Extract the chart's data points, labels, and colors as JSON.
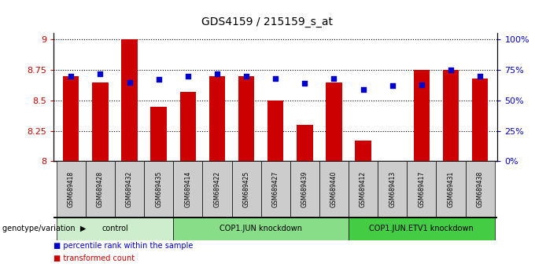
{
  "title": "GDS4159 / 215159_s_at",
  "samples": [
    "GSM689418",
    "GSM689428",
    "GSM689432",
    "GSM689435",
    "GSM689414",
    "GSM689422",
    "GSM689425",
    "GSM689427",
    "GSM689439",
    "GSM689440",
    "GSM689412",
    "GSM689413",
    "GSM689417",
    "GSM689431",
    "GSM689438"
  ],
  "bar_values": [
    8.7,
    8.65,
    9.0,
    8.45,
    8.57,
    8.7,
    8.7,
    8.5,
    8.3,
    8.65,
    8.17,
    8.0,
    8.75,
    8.75,
    8.68
  ],
  "dot_values": [
    70,
    72,
    65,
    67,
    70,
    72,
    70,
    68,
    64,
    68,
    59,
    62,
    63,
    75,
    70
  ],
  "bar_color": "#cc0000",
  "dot_color": "#0000cc",
  "ymin": 8.0,
  "ymax": 9.05,
  "ytick_values": [
    8.0,
    8.25,
    8.5,
    8.75,
    9.0
  ],
  "ytick_labels": [
    "8",
    "8.25",
    "8.5",
    "8.75",
    "9"
  ],
  "y2min": 0,
  "y2max": 105,
  "y2tick_values": [
    0,
    25,
    50,
    75,
    100
  ],
  "y2tick_labels": [
    "0%",
    "25%",
    "50%",
    "75%",
    "100%"
  ],
  "groups": [
    {
      "label": "control",
      "start": 0,
      "end": 4,
      "color": "#cceecc"
    },
    {
      "label": "COP1.JUN knockdown",
      "start": 4,
      "end": 10,
      "color": "#88dd88"
    },
    {
      "label": "COP1.JUN.ETV1 knockdown",
      "start": 10,
      "end": 15,
      "color": "#44cc44"
    }
  ],
  "legend_items": [
    {
      "label": "transformed count",
      "color": "#cc0000"
    },
    {
      "label": "percentile rank within the sample",
      "color": "#0000cc"
    }
  ],
  "genotype_label": "genotype/variation",
  "gsm_bg_color": "#cccccc",
  "bar_width": 0.55
}
